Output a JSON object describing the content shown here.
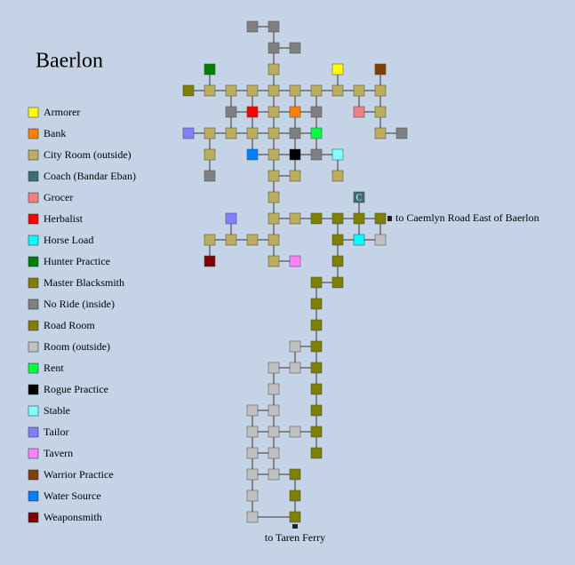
{
  "title": "Baerlon",
  "legend": [
    {
      "label": "Armorer",
      "color": "#ffff00"
    },
    {
      "label": "Bank",
      "color": "#ff8000"
    },
    {
      "label": "City Room (outside)",
      "color": "#bcae5c"
    },
    {
      "label": "Coach (Bandar Eban)",
      "color": "#3d7070"
    },
    {
      "label": "Grocer",
      "color": "#f08080"
    },
    {
      "label": "Herbalist",
      "color": "#ff0000"
    },
    {
      "label": "Horse Load",
      "color": "#00ffff"
    },
    {
      "label": "Hunter Practice",
      "color": "#008000"
    },
    {
      "label": "Master Blacksmith",
      "color": "#808000"
    },
    {
      "label": "No Ride (inside)",
      "color": "#808080"
    },
    {
      "label": "Road Room",
      "color": "#808000"
    },
    {
      "label": "Room (outside)",
      "color": "#c0c0c0"
    },
    {
      "label": "Rent",
      "color": "#00ff40"
    },
    {
      "label": "Rogue Practice",
      "color": "#000000"
    },
    {
      "label": "Stable",
      "color": "#80ffff"
    },
    {
      "label": "Tailor",
      "color": "#8080ff"
    },
    {
      "label": "Tavern",
      "color": "#ff80ff"
    },
    {
      "label": "Warrior Practice",
      "color": "#804000"
    },
    {
      "label": "Water Source",
      "color": "#0080ff"
    },
    {
      "label": "Weaponsmith",
      "color": "#800000"
    }
  ],
  "coach_mark": "C",
  "exits": [
    "to Caemlyn Road East of Baerlon",
    "to Taren Ferry"
  ]
}
